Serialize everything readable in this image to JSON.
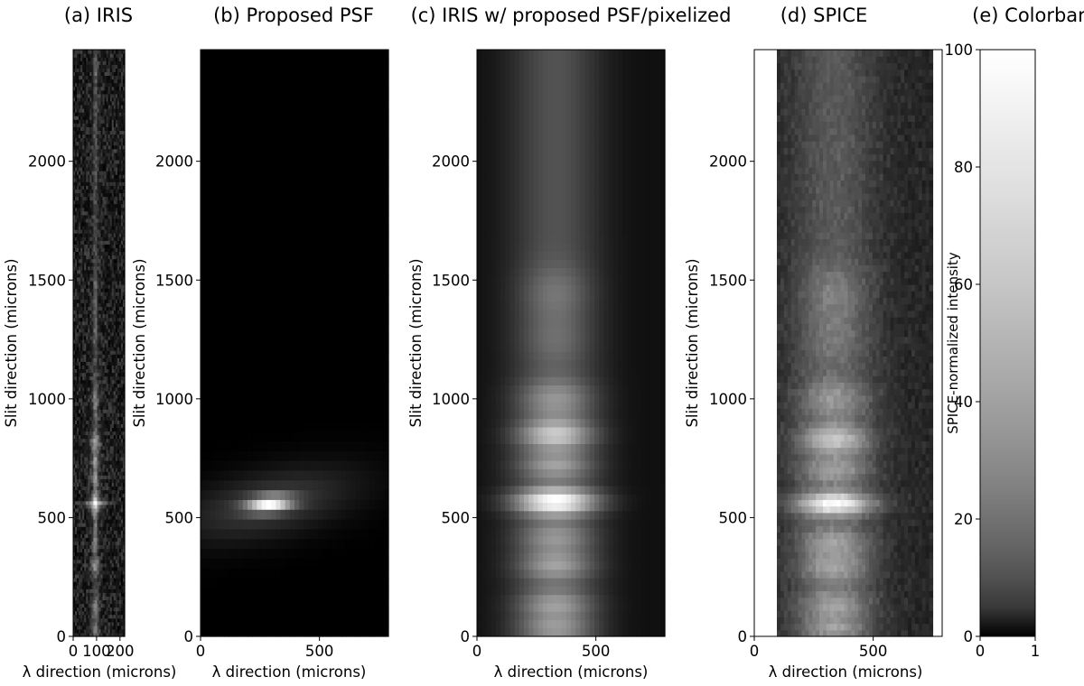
{
  "figure": {
    "background": "#ffffff"
  },
  "chart_data": [
    {
      "id": "iris",
      "type": "heatmap",
      "title": "(a) IRIS",
      "xlabel": "λ direction (microns)",
      "ylabel": "Slit direction (microns)",
      "xlim": [
        0,
        220
      ],
      "ylim": [
        0,
        2470
      ],
      "xticks": [
        "0",
        "100",
        "200"
      ],
      "yticks": [
        "0",
        "500",
        "1000",
        "1500",
        "2000"
      ],
      "colormap": "gray",
      "data_extent_x": [
        0,
        220
      ],
      "data_extent_y": [
        0,
        2470
      ],
      "rows": 160,
      "cols": 28,
      "noise": 0.42,
      "noise_floor": 0.1,
      "line": {
        "center": 95,
        "core_width": 6,
        "halo_width": 18,
        "core_peak": 0.28
      },
      "blobs": [
        {
          "y": 560,
          "amp": 1.0,
          "w": 18,
          "h": 25,
          "cross_x": 28,
          "cross_y": 55
        },
        {
          "y": 820,
          "amp": 0.8,
          "w": 14,
          "h": 30
        },
        {
          "y": 730,
          "amp": 0.55,
          "w": 12,
          "h": 25
        },
        {
          "y": 660,
          "amp": 0.5,
          "w": 12,
          "h": 20
        },
        {
          "y": 1000,
          "amp": 0.5,
          "w": 9,
          "h": 50
        },
        {
          "y": 400,
          "amp": 0.45,
          "w": 10,
          "h": 25
        },
        {
          "y": 300,
          "amp": 0.65,
          "w": 14,
          "h": 22
        },
        {
          "y": 120,
          "amp": 0.55,
          "w": 11,
          "h": 30
        },
        {
          "y": 30,
          "amp": 0.5,
          "w": 12,
          "h": 20
        },
        {
          "y": 1450,
          "amp": 0.3,
          "w": 5,
          "h": 50
        },
        {
          "y": 1300,
          "amp": 0.25,
          "w": 6,
          "h": 50
        },
        {
          "y": 2380,
          "amp": 0.3,
          "w": 6,
          "h": 20
        }
      ]
    },
    {
      "id": "psf",
      "type": "heatmap",
      "title": "(b) Proposed PSF",
      "xlabel": "λ direction (microns)",
      "ylabel": "Slit direction (microns)",
      "xlim": [
        0,
        790
      ],
      "ylim": [
        0,
        2470
      ],
      "xticks": [
        "0",
        "500"
      ],
      "yticks": [
        "0",
        "500",
        "1000",
        "1500",
        "2000"
      ],
      "colormap": "gray",
      "data_extent_x": [
        0,
        790
      ],
      "data_extent_y": [
        0,
        2470
      ],
      "rows": 60,
      "cols": 40,
      "psf": {
        "center_x": 290,
        "center_y": 560,
        "core_sigma_x": 65,
        "core_sigma_y": 24,
        "core_tilt": 0.08,
        "halo_sigma_x": 240,
        "halo_sigma_y": 90,
        "halo_tilt": 0.2,
        "halo_amp": 0.22
      }
    },
    {
      "id": "iris_psf",
      "type": "heatmap",
      "title": "(c) IRIS w/ proposed PSF/pixelized",
      "xlabel": "λ direction (microns)",
      "ylabel": "Slit direction (microns)",
      "xlim": [
        0,
        790
      ],
      "ylim": [
        0,
        2470
      ],
      "xticks": [
        "0",
        "500"
      ],
      "yticks": [
        "0",
        "500",
        "1000",
        "1500",
        "2000"
      ],
      "colormap": "gray",
      "data_extent_x": [
        0,
        790
      ],
      "data_extent_y": [
        0,
        2470
      ],
      "rows": 70,
      "cols": 40,
      "noise": 0.0,
      "column": {
        "center": 330,
        "sigma_x": 130,
        "base": 0.04,
        "core": 0.25
      },
      "blobs": [
        {
          "y": 570,
          "amp": 0.85,
          "w": 120,
          "h": 40
        },
        {
          "y": 850,
          "amp": 0.55,
          "w": 110,
          "h": 45
        },
        {
          "y": 720,
          "amp": 0.35,
          "w": 110,
          "h": 40
        },
        {
          "y": 1000,
          "amp": 0.3,
          "w": 110,
          "h": 60
        },
        {
          "y": 420,
          "amp": 0.3,
          "w": 110,
          "h": 45
        },
        {
          "y": 300,
          "amp": 0.35,
          "w": 110,
          "h": 45
        },
        {
          "y": 130,
          "amp": 0.35,
          "w": 110,
          "h": 50
        },
        {
          "y": 30,
          "amp": 0.3,
          "w": 110,
          "h": 30
        },
        {
          "y": 1450,
          "amp": 0.15,
          "w": 100,
          "h": 80
        },
        {
          "y": 1250,
          "amp": 0.12,
          "w": 100,
          "h": 80
        }
      ]
    },
    {
      "id": "spice",
      "type": "heatmap",
      "title": "(d) SPICE",
      "xlabel": "λ direction (microns)",
      "ylabel": "Slit direction (microns)",
      "xlim": [
        0,
        790
      ],
      "ylim": [
        0,
        2470
      ],
      "xticks": [
        "0",
        "500"
      ],
      "yticks": [
        "0",
        "500",
        "1000",
        "1500",
        "2000"
      ],
      "colormap": "gray",
      "data_extent_x": [
        95,
        750
      ],
      "data_extent_y": [
        0,
        2470
      ],
      "rows": 90,
      "cols": 44,
      "noise": 0.08,
      "noise_floor": 0.05,
      "column": {
        "center": 335,
        "sigma_x": 120,
        "base": 0.08,
        "core": 0.22
      },
      "blobs": [
        {
          "y": 560,
          "amp": 0.85,
          "w": 115,
          "h": 35
        },
        {
          "y": 830,
          "amp": 0.55,
          "w": 105,
          "h": 45
        },
        {
          "y": 700,
          "amp": 0.35,
          "w": 105,
          "h": 40
        },
        {
          "y": 1000,
          "amp": 0.3,
          "w": 105,
          "h": 60
        },
        {
          "y": 400,
          "amp": 0.35,
          "w": 105,
          "h": 45
        },
        {
          "y": 290,
          "amp": 0.35,
          "w": 105,
          "h": 45
        },
        {
          "y": 130,
          "amp": 0.35,
          "w": 105,
          "h": 50
        },
        {
          "y": 30,
          "amp": 0.3,
          "w": 105,
          "h": 30
        },
        {
          "y": 1450,
          "amp": 0.18,
          "w": 100,
          "h": 80
        },
        {
          "y": 1250,
          "amp": 0.15,
          "w": 100,
          "h": 80
        }
      ]
    },
    {
      "id": "colorbar",
      "type": "heatmap",
      "title": "(e) Colorbar",
      "xlabel": "",
      "ylabel": "SPICE-normalized intensity",
      "xlim": [
        0,
        1
      ],
      "ylim": [
        0,
        100
      ],
      "xticks": [
        "0",
        "1"
      ],
      "yticks": [
        "0",
        "20",
        "40",
        "60",
        "80",
        "100"
      ],
      "colormap": "gray",
      "gamma": 0.5
    }
  ]
}
